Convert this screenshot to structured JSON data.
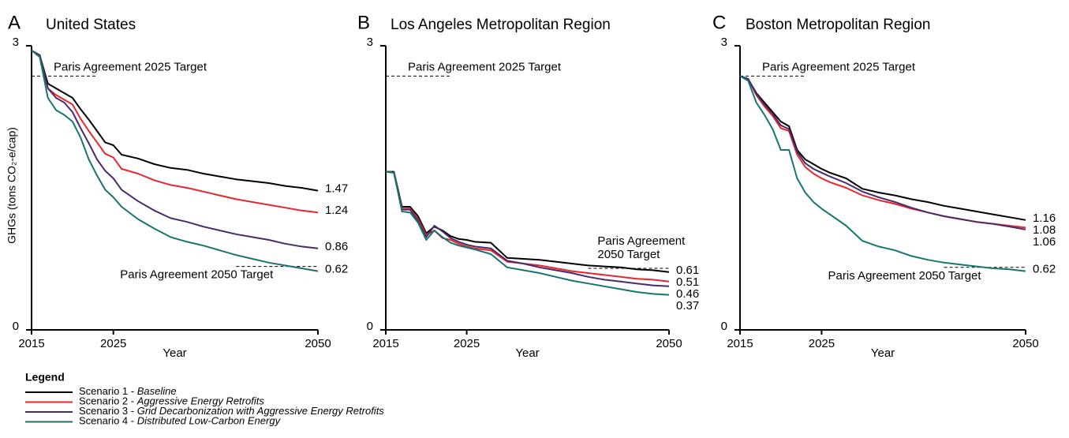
{
  "chart_data": [
    {
      "type": "line",
      "panel": "A",
      "title": "United States",
      "ylabel": "GHGs (tons CO₂-e/cap)",
      "xlabel": "Year",
      "x": [
        2015,
        2016,
        2017,
        2018,
        2019,
        2020,
        2021,
        2022,
        2023,
        2024,
        2025,
        2026,
        2028,
        2030,
        2032,
        2034,
        2036,
        2038,
        2040,
        2042,
        2044,
        2046,
        2048,
        2050
      ],
      "xlim": [
        2015,
        2050
      ],
      "xticks": [
        2015,
        2025,
        2050
      ],
      "ylim": [
        0,
        3
      ],
      "yticks": [
        0,
        3
      ],
      "series": [
        {
          "color": "#000000",
          "values": [
            2.95,
            2.9,
            2.6,
            2.55,
            2.5,
            2.45,
            2.33,
            2.22,
            2.1,
            1.98,
            1.95,
            1.85,
            1.81,
            1.75,
            1.71,
            1.69,
            1.65,
            1.62,
            1.59,
            1.57,
            1.55,
            1.52,
            1.5,
            1.47
          ]
        },
        {
          "color": "#e8262b",
          "values": [
            2.95,
            2.9,
            2.55,
            2.48,
            2.43,
            2.38,
            2.23,
            2.1,
            1.98,
            1.86,
            1.82,
            1.7,
            1.65,
            1.58,
            1.53,
            1.5,
            1.46,
            1.42,
            1.38,
            1.35,
            1.32,
            1.29,
            1.26,
            1.24
          ]
        },
        {
          "color": "#4b2a6b",
          "values": [
            2.95,
            2.9,
            2.55,
            2.45,
            2.4,
            2.3,
            2.13,
            1.97,
            1.8,
            1.68,
            1.6,
            1.48,
            1.36,
            1.26,
            1.18,
            1.14,
            1.09,
            1.05,
            1.01,
            0.98,
            0.95,
            0.91,
            0.88,
            0.86
          ]
        },
        {
          "color": "#17756f",
          "values": [
            2.95,
            2.88,
            2.45,
            2.32,
            2.27,
            2.2,
            2.03,
            1.8,
            1.63,
            1.48,
            1.4,
            1.3,
            1.17,
            1.07,
            0.98,
            0.93,
            0.89,
            0.84,
            0.79,
            0.75,
            0.71,
            0.68,
            0.65,
            0.62
          ]
        }
      ],
      "targets": [
        {
          "label": "Paris Agreement 2025 Target",
          "value": 2.68,
          "x": [
            2015,
            2023
          ]
        },
        {
          "label": "Paris Agreement 2050 Target",
          "value": 0.67,
          "x": [
            2040,
            2050
          ]
        }
      ]
    },
    {
      "type": "line",
      "panel": "B",
      "title": "Los Angeles Metropolitan Region",
      "xlabel": "Year",
      "x": [
        2015,
        2016,
        2017,
        2018,
        2019,
        2020,
        2021,
        2022,
        2023,
        2024,
        2025,
        2026,
        2028,
        2030,
        2032,
        2034,
        2036,
        2038,
        2040,
        2042,
        2044,
        2046,
        2048,
        2050
      ],
      "xlim": [
        2015,
        2050
      ],
      "xticks": [
        2015,
        2025,
        2050
      ],
      "ylim": [
        0,
        3
      ],
      "yticks": [
        0,
        3
      ],
      "series": [
        {
          "color": "#000000",
          "values": [
            1.67,
            1.67,
            1.3,
            1.3,
            1.2,
            1.02,
            1.09,
            1.05,
            0.99,
            0.96,
            0.95,
            0.93,
            0.92,
            0.76,
            0.75,
            0.74,
            0.72,
            0.7,
            0.68,
            0.67,
            0.66,
            0.64,
            0.63,
            0.61
          ]
        },
        {
          "color": "#e8262b",
          "values": [
            1.67,
            1.66,
            1.28,
            1.28,
            1.17,
            1.0,
            1.05,
            0.97,
            0.95,
            0.91,
            0.88,
            0.86,
            0.84,
            0.72,
            0.7,
            0.68,
            0.65,
            0.62,
            0.6,
            0.58,
            0.56,
            0.54,
            0.53,
            0.51
          ]
        },
        {
          "color": "#4b2a6b",
          "values": [
            1.67,
            1.66,
            1.27,
            1.27,
            1.15,
            0.98,
            1.1,
            1.04,
            0.97,
            0.93,
            0.9,
            0.88,
            0.86,
            0.73,
            0.7,
            0.66,
            0.63,
            0.6,
            0.56,
            0.53,
            0.51,
            0.49,
            0.47,
            0.46
          ]
        },
        {
          "color": "#17756f",
          "values": [
            1.67,
            1.66,
            1.25,
            1.24,
            1.13,
            0.95,
            1.05,
            0.98,
            0.92,
            0.89,
            0.87,
            0.85,
            0.8,
            0.66,
            0.63,
            0.6,
            0.56,
            0.52,
            0.49,
            0.46,
            0.43,
            0.4,
            0.38,
            0.37
          ]
        }
      ],
      "targets": [
        {
          "label": "Paris Agreement 2025 Target",
          "value": 2.68,
          "x": [
            2015,
            2023
          ]
        },
        {
          "label": [
            "Paris Agreement",
            "2050 Target"
          ],
          "value": 0.65,
          "x": [
            2040,
            2050
          ]
        }
      ]
    },
    {
      "type": "line",
      "panel": "C",
      "title": "Boston Metropolitan Region",
      "xlabel": "Year",
      "x": [
        2015,
        2016,
        2017,
        2018,
        2019,
        2020,
        2021,
        2022,
        2023,
        2024,
        2025,
        2026,
        2028,
        2030,
        2032,
        2034,
        2036,
        2038,
        2040,
        2042,
        2044,
        2046,
        2048,
        2050
      ],
      "xlim": [
        2015,
        2050
      ],
      "xticks": [
        2015,
        2025,
        2050
      ],
      "ylim": [
        0,
        3
      ],
      "yticks": [
        0,
        3
      ],
      "series": [
        {
          "color": "#000000",
          "values": [
            2.68,
            2.65,
            2.5,
            2.4,
            2.3,
            2.2,
            2.15,
            1.9,
            1.8,
            1.75,
            1.7,
            1.66,
            1.6,
            1.49,
            1.45,
            1.42,
            1.38,
            1.35,
            1.31,
            1.28,
            1.25,
            1.22,
            1.19,
            1.16
          ]
        },
        {
          "color": "#e8262b",
          "values": [
            2.68,
            2.65,
            2.48,
            2.36,
            2.26,
            2.13,
            2.1,
            1.85,
            1.72,
            1.65,
            1.6,
            1.56,
            1.5,
            1.42,
            1.37,
            1.33,
            1.28,
            1.24,
            1.2,
            1.17,
            1.14,
            1.12,
            1.1,
            1.08
          ]
        },
        {
          "color": "#4b2a6b",
          "values": [
            2.68,
            2.65,
            2.49,
            2.38,
            2.28,
            2.16,
            2.12,
            1.88,
            1.76,
            1.7,
            1.66,
            1.62,
            1.55,
            1.46,
            1.4,
            1.35,
            1.29,
            1.24,
            1.2,
            1.17,
            1.14,
            1.12,
            1.09,
            1.06
          ]
        },
        {
          "color": "#17756f",
          "values": [
            2.68,
            2.63,
            2.4,
            2.27,
            2.12,
            1.9,
            1.9,
            1.6,
            1.45,
            1.35,
            1.28,
            1.22,
            1.1,
            0.94,
            0.88,
            0.84,
            0.78,
            0.74,
            0.71,
            0.69,
            0.67,
            0.65,
            0.64,
            0.62
          ]
        }
      ],
      "targets": [
        {
          "label": "Paris Agreement 2025 Target",
          "value": 2.68,
          "x": [
            2015,
            2023
          ]
        },
        {
          "label": "Paris Agreement 2050 Target",
          "value": 0.66,
          "x": [
            2040,
            2050
          ]
        }
      ]
    }
  ],
  "legend": {
    "title": "Legend",
    "items": [
      {
        "prefix": "Scenario 1 - ",
        "name": "Baseline",
        "color": "#000000"
      },
      {
        "prefix": "Scenario 2 - ",
        "name": "Aggressive Energy Retrofits",
        "color": "#e8262b"
      },
      {
        "prefix": "Scenario 3 - ",
        "name": "Grid Decarbonization with Aggressive Energy Retrofits",
        "color": "#4b2a6b"
      },
      {
        "prefix": "Scenario 4 - ",
        "name": "Distributed Low-Carbon Energy",
        "color": "#17756f"
      }
    ]
  }
}
